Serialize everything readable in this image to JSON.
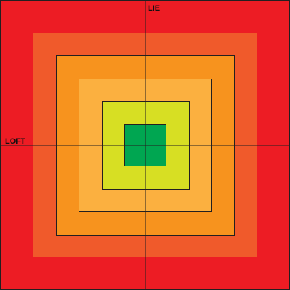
{
  "labels": {
    "vertical_axis": "LIE",
    "horizontal_axis": "LOFT"
  },
  "zones": [
    {
      "name": "outer-zone",
      "color": "#ED1C24"
    },
    {
      "name": "zone-2",
      "color": "#F05A2B"
    },
    {
      "name": "zone-3",
      "color": "#F7931E"
    },
    {
      "name": "zone-4",
      "color": "#FBB040"
    },
    {
      "name": "zone-5",
      "color": "#D7DF23"
    },
    {
      "name": "center-zone",
      "color": "#00A651"
    }
  ],
  "colors": {
    "outline": "#231F20",
    "axis_line": "#231F20"
  }
}
